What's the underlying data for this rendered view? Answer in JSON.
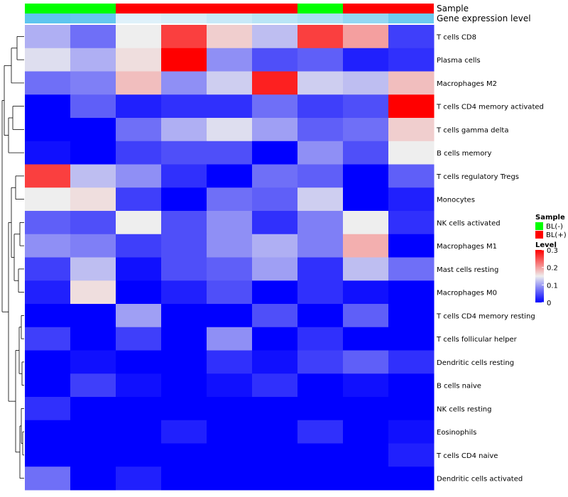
{
  "chart_data": {
    "type": "heatmap",
    "annotation_titles": [
      "Sample",
      "Gene expression level"
    ],
    "sample_groups": [
      "BL(-)",
      "BL(-)",
      "BL(+)",
      "BL(+)",
      "BL(+)",
      "BL(+)",
      "BL(-)",
      "BL(+)",
      "BL(+)"
    ],
    "gene_expression_level": [
      0.95,
      0.9,
      0.1,
      0.15,
      0.25,
      0.35,
      0.45,
      0.6,
      0.85
    ],
    "rows": [
      "T cells CD8",
      "Plasma cells",
      "Macrophages M2",
      "T cells CD4 memory activated",
      "T cells gamma delta",
      "B cells memory",
      "T cells regulatory  Tregs",
      "Monocytes",
      "NK cells activated",
      "Macrophages M1",
      "Mast cells resting",
      "Macrophages M0",
      "T cells CD4 memory resting",
      "T cells follicular helper",
      "Dendritic cells resting",
      "B cells naive",
      "NK cells resting",
      "Eosinophils",
      "T cells CD4 naive",
      "Dendritic cells activated"
    ],
    "values": [
      [
        0.11,
        0.07,
        0.15,
        0.26,
        0.17,
        0.12,
        0.26,
        0.2,
        0.04
      ],
      [
        0.14,
        0.11,
        0.16,
        0.3,
        0.09,
        0.05,
        0.06,
        0.02,
        0.03
      ],
      [
        0.07,
        0.08,
        0.18,
        0.09,
        0.13,
        0.28,
        0.13,
        0.12,
        0.18
      ],
      [
        0.0,
        0.06,
        0.02,
        0.03,
        0.03,
        0.07,
        0.04,
        0.05,
        0.3
      ],
      [
        0.0,
        0.0,
        0.07,
        0.11,
        0.14,
        0.1,
        0.06,
        0.07,
        0.17
      ],
      [
        0.01,
        0.0,
        0.04,
        0.05,
        0.05,
        0.0,
        0.09,
        0.05,
        0.15
      ],
      [
        0.26,
        0.12,
        0.09,
        0.03,
        0.0,
        0.07,
        0.06,
        0.0,
        0.06
      ],
      [
        0.15,
        0.16,
        0.04,
        0.0,
        0.07,
        0.06,
        0.13,
        0.0,
        0.02
      ],
      [
        0.06,
        0.05,
        0.15,
        0.05,
        0.09,
        0.03,
        0.08,
        0.15,
        0.03
      ],
      [
        0.09,
        0.08,
        0.04,
        0.05,
        0.09,
        0.11,
        0.08,
        0.19,
        0.0
      ],
      [
        0.04,
        0.12,
        0.01,
        0.05,
        0.06,
        0.1,
        0.03,
        0.12,
        0.07
      ],
      [
        0.02,
        0.16,
        0.0,
        0.02,
        0.05,
        0.0,
        0.03,
        0.01,
        0.0
      ],
      [
        0.0,
        0.0,
        0.1,
        0.0,
        0.0,
        0.05,
        0.0,
        0.06,
        0.0
      ],
      [
        0.04,
        0.0,
        0.04,
        0.0,
        0.09,
        0.0,
        0.03,
        0.0,
        0.0
      ],
      [
        0.0,
        0.01,
        0.0,
        0.0,
        0.03,
        0.01,
        0.04,
        0.06,
        0.03
      ],
      [
        0.0,
        0.04,
        0.01,
        0.0,
        0.01,
        0.03,
        0.0,
        0.01,
        0.0
      ],
      [
        0.03,
        0.0,
        0.0,
        0.0,
        0.0,
        0.0,
        0.0,
        0.0,
        0.0
      ],
      [
        0.0,
        0.0,
        0.0,
        0.02,
        0.0,
        0.0,
        0.03,
        0.0,
        0.01
      ],
      [
        0.0,
        0.0,
        0.0,
        0.0,
        0.0,
        0.0,
        0.0,
        0.0,
        0.02
      ],
      [
        0.07,
        0.0,
        0.02,
        0.0,
        0.0,
        0.0,
        0.0,
        0.0,
        0.0
      ]
    ],
    "color_scale": {
      "low": "#0000ff",
      "mid": "#eeeeee",
      "high": "#ff0000",
      "domain": [
        0,
        0.15,
        0.3
      ]
    },
    "legend": {
      "sample_title": "Sample",
      "sample_entries": [
        {
          "label": "BL(-)",
          "color": "#00ff00"
        },
        {
          "label": "BL(+)",
          "color": "#ff0000"
        }
      ],
      "level_title": "Level",
      "level_ticks": [
        "0.3",
        "0.2",
        "0.1",
        "0"
      ],
      "level_tick_values": [
        0.3,
        0.2,
        0.1,
        0
      ],
      "placement": "right"
    },
    "group_colors": {
      "BL(-)": "#00ff00",
      "BL(+)": "#ff0000"
    },
    "expression_colors": {
      "low": "#eef6fb",
      "high": "#56c2ee"
    },
    "dendrogram": "rows"
  }
}
